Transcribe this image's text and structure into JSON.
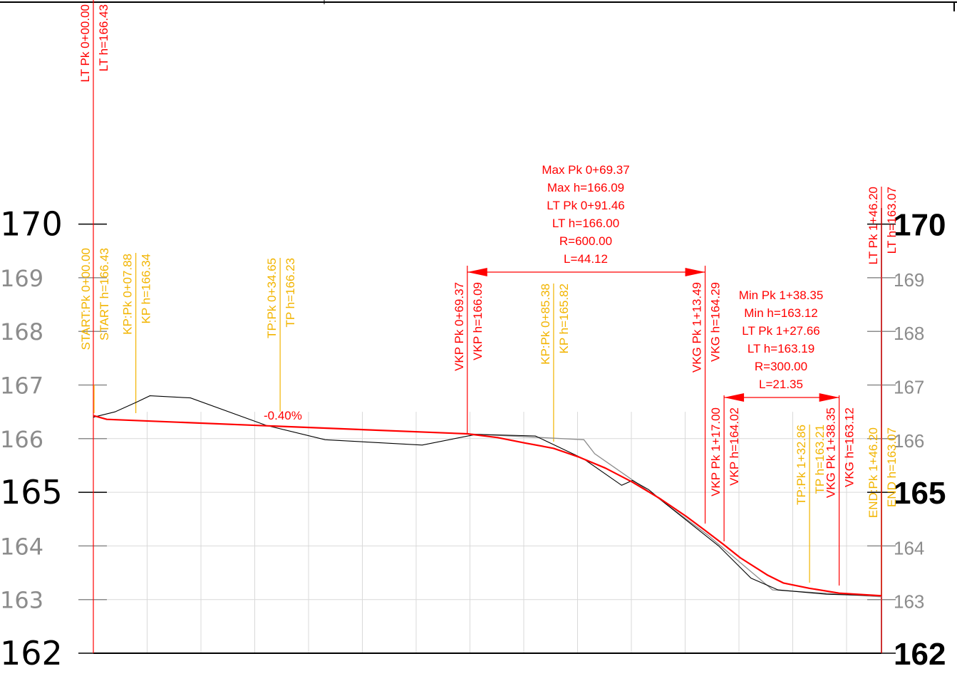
{
  "colors": {
    "background": "#ffffff",
    "grid": "#d9d9d9",
    "axis": "#000000",
    "design_line": "#ff0000",
    "terrain_line": "#000000",
    "terrain_alt_line": "#8c8c8c",
    "red_annotation": "#ff0000",
    "yellow_annotation": "#f2b400",
    "left_axis_major": "#000000",
    "left_axis_minor": "#8c8c8c",
    "right_axis_major": "#000000",
    "right_axis_minor": "#8c8c8c"
  },
  "left_axis": {
    "ticks": [
      {
        "value": 170,
        "label": "170",
        "major": true
      },
      {
        "value": 169,
        "label": "169",
        "major": false
      },
      {
        "value": 168,
        "label": "168",
        "major": false
      },
      {
        "value": 167,
        "label": "167",
        "major": false
      },
      {
        "value": 166,
        "label": "166",
        "major": false
      },
      {
        "value": 165,
        "label": "165",
        "major": true
      },
      {
        "value": 164,
        "label": "164",
        "major": false
      },
      {
        "value": 163,
        "label": "163",
        "major": false
      },
      {
        "value": 162,
        "label": "162",
        "major": true
      }
    ]
  },
  "right_axis": {
    "ticks": [
      {
        "value": 170,
        "label": "170",
        "major": true
      },
      {
        "value": 169,
        "label": "169",
        "major": false
      },
      {
        "value": 168,
        "label": "168",
        "major": false
      },
      {
        "value": 167,
        "label": "167",
        "major": false
      },
      {
        "value": 166,
        "label": "166",
        "major": false
      },
      {
        "value": 165,
        "label": "165",
        "major": true
      },
      {
        "value": 164,
        "label": "164",
        "major": false
      },
      {
        "value": 163,
        "label": "163",
        "major": false
      },
      {
        "value": 162,
        "label": "162",
        "major": true
      }
    ]
  },
  "slope_label": "-0.40%",
  "vertical_labels": [
    {
      "id": "lt-pk-start",
      "chainage": 0.0,
      "color": "red",
      "lines": [
        "LT Pk 0+00.00",
        "LT h=166.43"
      ]
    },
    {
      "id": "start",
      "chainage": 0.0,
      "color": "yellow",
      "lines": [
        "START:Pk 0+00.00",
        "START h=166.43"
      ]
    },
    {
      "id": "kp-0788",
      "chainage": 7.88,
      "color": "yellow",
      "lines": [
        "KP:Pk 0+07.88",
        "KP h=166.34"
      ]
    },
    {
      "id": "tp-3465",
      "chainage": 34.65,
      "color": "yellow",
      "lines": [
        "TP:Pk 0+34.65",
        "TP h=166.23"
      ]
    },
    {
      "id": "vkp-6937",
      "chainage": 69.37,
      "color": "red",
      "lines": [
        "VKP Pk 0+69.37",
        "VKP h=166.09"
      ]
    },
    {
      "id": "kp-8538",
      "chainage": 85.38,
      "color": "yellow",
      "lines": [
        "KP:Pk 0+85.38",
        "KP h=165.82"
      ]
    },
    {
      "id": "vkg-11349",
      "chainage": 113.49,
      "color": "red",
      "lines": [
        "VKG Pk 1+13.49",
        "VKG h=164.29"
      ]
    },
    {
      "id": "vkp-11700",
      "chainage": 117.0,
      "color": "red",
      "lines": [
        "VKP Pk 1+17.00",
        "VKP h=164.02"
      ]
    },
    {
      "id": "tp-13286",
      "chainage": 132.86,
      "color": "yellow",
      "lines": [
        "TP:Pk 1+32.86",
        "TP h=163.21"
      ]
    },
    {
      "id": "vkg-13835",
      "chainage": 138.35,
      "color": "red",
      "lines": [
        "VKG Pk 1+38.35",
        "VKG h=163.12"
      ]
    },
    {
      "id": "end",
      "chainage": 146.2,
      "color": "yellow",
      "lines": [
        "END:Pk 1+46.20",
        "END h=163.07"
      ]
    },
    {
      "id": "lt-pk-end",
      "chainage": 146.2,
      "color": "red",
      "lines": [
        "LT Pk 1+46.20",
        "LT h=163.07"
      ]
    }
  ],
  "curve_blocks": [
    {
      "id": "max-curve",
      "lines": [
        "Max Pk 0+69.37",
        "Max h=166.09",
        "LT Pk 0+91.46",
        "LT h=166.00",
        "R=600.00",
        "L=44.12"
      ],
      "from_chainage": 69.37,
      "to_chainage": 113.49
    },
    {
      "id": "min-curve",
      "lines": [
        "Min Pk 1+38.35",
        "Min h=163.12",
        "LT Pk 1+27.66",
        "LT h=163.19",
        "R=300.00",
        "L=21.35"
      ],
      "from_chainage": 117.0,
      "to_chainage": 138.35
    }
  ],
  "design_profile": [
    [
      0.0,
      166.43
    ],
    [
      2.5,
      166.36
    ],
    [
      34.65,
      166.23
    ],
    [
      69.37,
      166.09
    ],
    [
      75,
      166.02
    ],
    [
      80,
      165.92
    ],
    [
      85.38,
      165.82
    ],
    [
      90,
      165.66
    ],
    [
      95,
      165.45
    ],
    [
      100,
      165.19
    ],
    [
      105,
      164.89
    ],
    [
      110,
      164.55
    ],
    [
      113.49,
      164.29
    ],
    [
      117.0,
      164.02
    ],
    [
      120,
      163.78
    ],
    [
      125,
      163.46
    ],
    [
      128,
      163.31
    ],
    [
      132.86,
      163.21
    ],
    [
      138.35,
      163.12
    ],
    [
      146.2,
      163.07
    ]
  ],
  "terrain_profile": [
    [
      0.0,
      166.4
    ],
    [
      4.0,
      166.5
    ],
    [
      8.0,
      166.68
    ],
    [
      10.5,
      166.8
    ],
    [
      18,
      166.76
    ],
    [
      32,
      166.25
    ],
    [
      43,
      165.98
    ],
    [
      61,
      165.88
    ],
    [
      71,
      166.08
    ],
    [
      82,
      166.05
    ],
    [
      91,
      165.62
    ],
    [
      98,
      165.13
    ],
    [
      100,
      165.22
    ],
    [
      103,
      165.05
    ],
    [
      106,
      164.8
    ],
    [
      116,
      164.0
    ],
    [
      122,
      163.4
    ],
    [
      127,
      163.18
    ],
    [
      136,
      163.1
    ],
    [
      146.2,
      163.07
    ]
  ],
  "terrain_alt_profile": [
    [
      69.37,
      166.09
    ],
    [
      91,
      165.98
    ],
    [
      93,
      165.72
    ],
    [
      104,
      164.95
    ],
    [
      114,
      164.2
    ],
    [
      126,
      163.18
    ],
    [
      146.2,
      163.05
    ]
  ]
}
